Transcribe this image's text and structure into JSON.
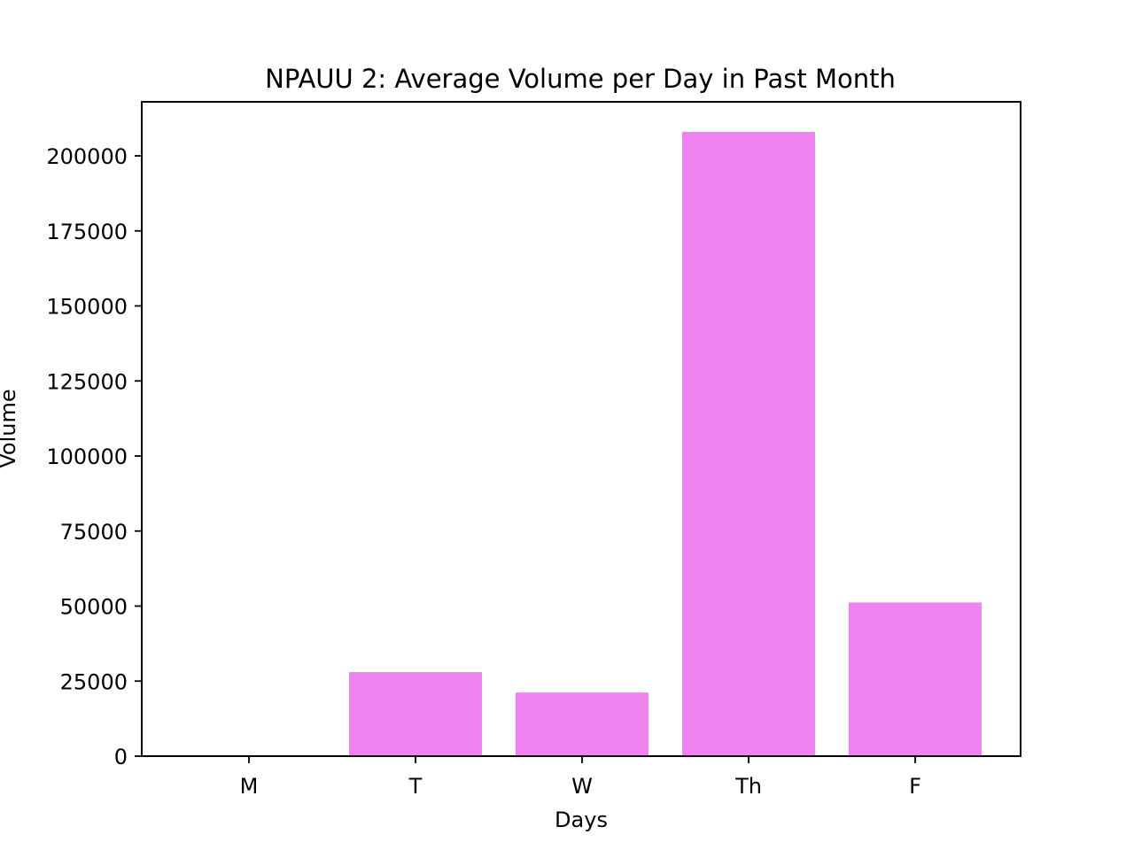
{
  "chart_data": {
    "type": "bar",
    "title": "NPAUU 2: Average Volume per Day in Past Month",
    "xlabel": "Days",
    "ylabel": "Volume",
    "categories": [
      "M",
      "T",
      "W",
      "Th",
      "F"
    ],
    "values": [
      0,
      28000,
      21200,
      208000,
      51200
    ],
    "ylim": [
      0,
      218000
    ],
    "yticks": [
      0,
      25000,
      50000,
      75000,
      100000,
      125000,
      150000,
      175000,
      200000
    ],
    "ytick_labels": [
      "0",
      "25000",
      "50000",
      "75000",
      "100000",
      "125000",
      "150000",
      "175000",
      "200000"
    ],
    "bar_color": "#ee82ee",
    "grid": false,
    "legend": "none"
  }
}
